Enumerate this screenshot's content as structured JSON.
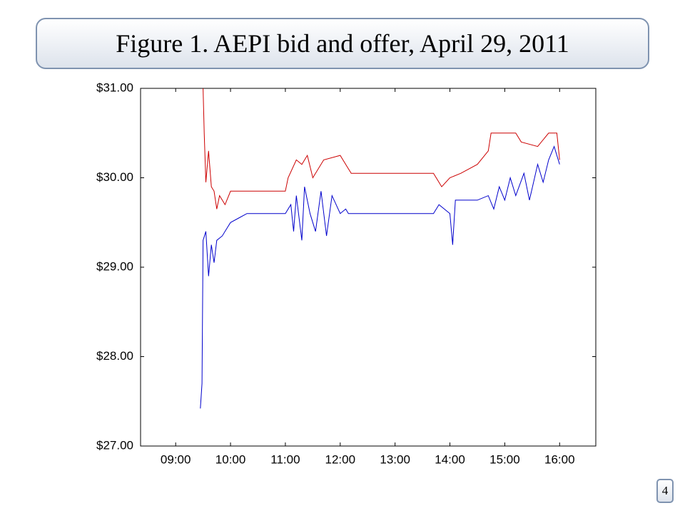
{
  "slide": {
    "page_number": "4"
  },
  "chart_data": {
    "type": "line",
    "title": "Figure 1. AEPI bid and offer, April 29, 2011",
    "xlim": [
      8.36,
      16.66
    ],
    "xticks": [
      {
        "value": 9,
        "label": "09:00"
      },
      {
        "value": 10,
        "label": "10:00"
      },
      {
        "value": 11,
        "label": "11:00"
      },
      {
        "value": 12,
        "label": "12:00"
      },
      {
        "value": 13,
        "label": "13:00"
      },
      {
        "value": 14,
        "label": "14:00"
      },
      {
        "value": 15,
        "label": "15:00"
      },
      {
        "value": 16,
        "label": "16:00"
      }
    ],
    "ylim": [
      27,
      31
    ],
    "yticks": [
      {
        "value": 27,
        "label": "$27.00"
      },
      {
        "value": 28,
        "label": "$28.00"
      },
      {
        "value": 29,
        "label": "$29.00"
      },
      {
        "value": 30,
        "label": "$30.00"
      },
      {
        "value": 31,
        "label": "$31.00"
      }
    ],
    "series": [
      {
        "color": "#cc0000",
        "x": [
          9.5,
          9.52,
          9.55,
          9.6,
          9.65,
          9.7,
          9.75,
          9.8,
          9.9,
          10.0,
          10.5,
          11.0,
          11.05,
          11.2,
          11.3,
          11.4,
          11.5,
          11.7,
          12.0,
          12.1,
          12.2,
          13.7,
          13.85,
          14.0,
          14.2,
          14.5,
          14.7,
          14.75,
          15.2,
          15.3,
          15.6,
          15.8,
          15.95,
          16.0
        ],
        "values": [
          31.0,
          30.5,
          29.95,
          30.3,
          29.9,
          29.85,
          29.65,
          29.8,
          29.7,
          29.85,
          29.85,
          29.85,
          30.0,
          30.2,
          30.15,
          30.25,
          30.0,
          30.2,
          30.25,
          30.15,
          30.05,
          30.05,
          29.9,
          30.0,
          30.05,
          30.15,
          30.3,
          30.5,
          30.5,
          30.4,
          30.35,
          30.5,
          30.5,
          30.2
        ]
      },
      {
        "color": "#0000cc",
        "x": [
          9.45,
          9.48,
          9.5,
          9.55,
          9.6,
          9.65,
          9.7,
          9.75,
          9.85,
          9.95,
          10.0,
          10.15,
          10.3,
          11.0,
          11.1,
          11.15,
          11.2,
          11.3,
          11.35,
          11.45,
          11.55,
          11.65,
          11.75,
          11.85,
          12.0,
          12.1,
          12.15,
          13.7,
          13.8,
          14.0,
          14.05,
          14.1,
          14.5,
          14.7,
          14.8,
          14.9,
          15.0,
          15.1,
          15.2,
          15.35,
          15.45,
          15.6,
          15.7,
          15.8,
          15.9,
          16.0
        ],
        "values": [
          27.42,
          27.7,
          29.3,
          29.4,
          28.9,
          29.25,
          29.05,
          29.3,
          29.35,
          29.45,
          29.5,
          29.55,
          29.6,
          29.6,
          29.7,
          29.4,
          29.8,
          29.3,
          29.9,
          29.6,
          29.4,
          29.85,
          29.35,
          29.8,
          29.6,
          29.65,
          29.6,
          29.6,
          29.7,
          29.6,
          29.25,
          29.75,
          29.75,
          29.8,
          29.65,
          29.9,
          29.75,
          30.0,
          29.8,
          30.05,
          29.75,
          30.15,
          29.95,
          30.2,
          30.35,
          30.15
        ]
      }
    ]
  }
}
